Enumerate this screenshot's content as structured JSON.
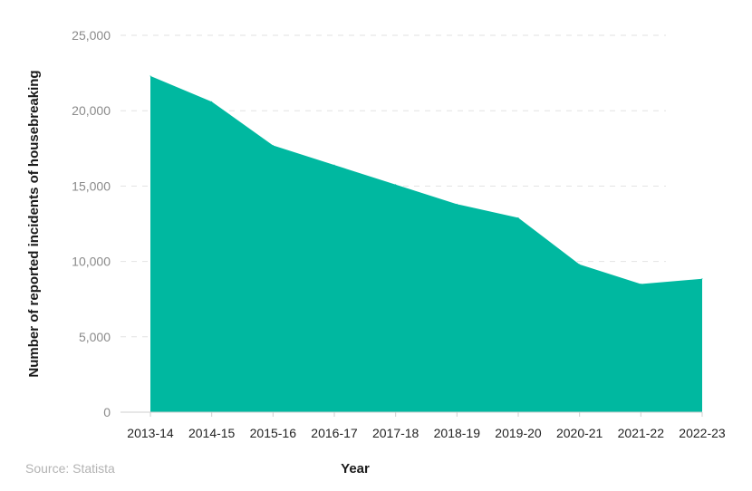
{
  "chart_data": {
    "type": "area",
    "categories": [
      "2013-14",
      "2014-15",
      "2015-16",
      "2016-17",
      "2017-18",
      "2018-19",
      "2019-20",
      "2020-21",
      "2021-22",
      "2022-23"
    ],
    "values": [
      22300,
      20600,
      17700,
      16400,
      15100,
      13800,
      12900,
      9800,
      8500,
      8850
    ],
    "xlabel": "Year",
    "ylabel": "Number of reported incidents of housebreaking",
    "ylim": [
      0,
      25000
    ],
    "yticks": [
      "0",
      "5,000",
      "10,000",
      "15,000",
      "20,000",
      "25,000"
    ],
    "ytick_values": [
      0,
      5000,
      10000,
      15000,
      20000,
      25000
    ],
    "grid": "horizontal-dashed",
    "legend": "none",
    "source": "Source: Statista",
    "colors": {
      "area_fill": "#00b8a0",
      "grid": "#e2e2e2",
      "axis_line": "#cfcfcf"
    }
  }
}
